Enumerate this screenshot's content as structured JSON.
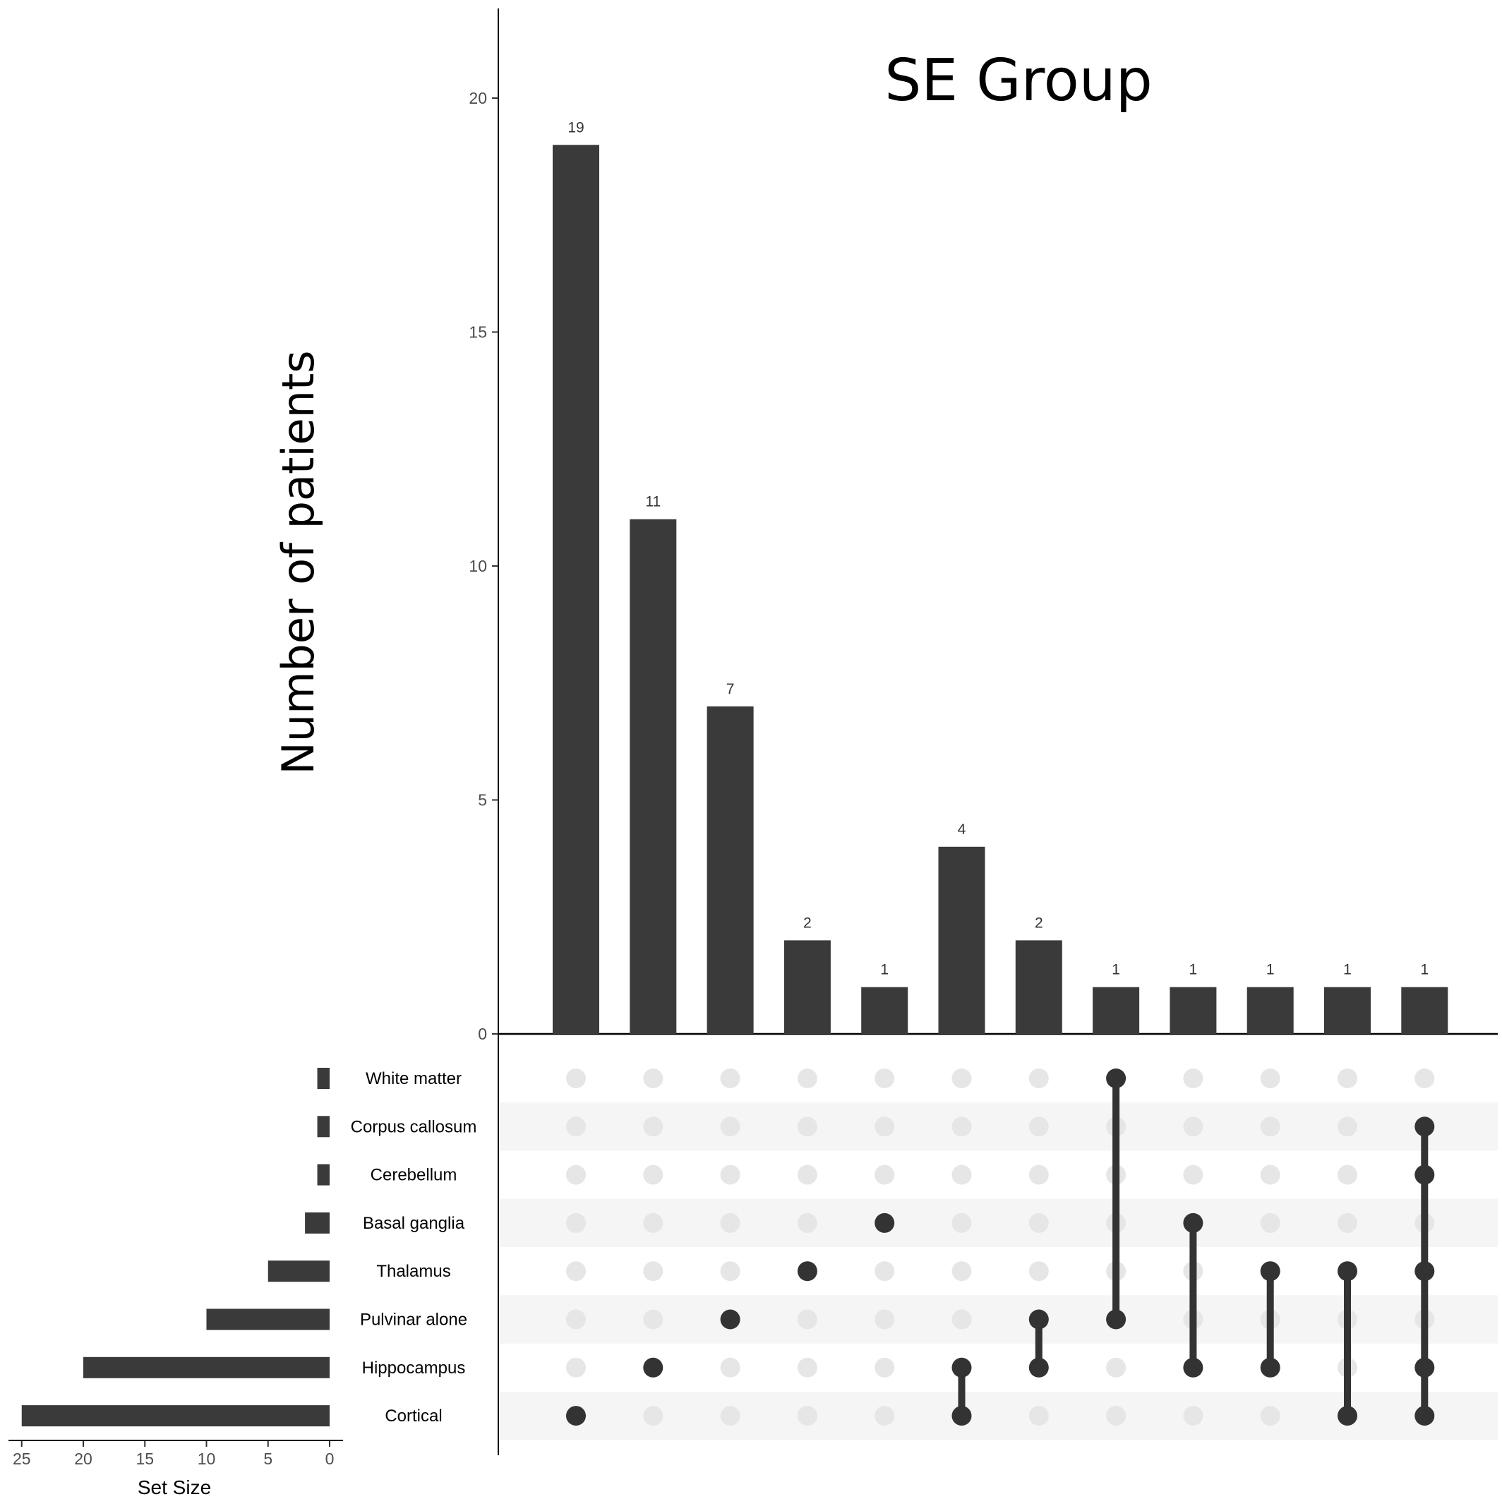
{
  "chart_data": {
    "type": "upset",
    "title": "SE Group",
    "ylabel": "Number of patients",
    "ylim": [
      0,
      22
    ],
    "yticks": [
      0,
      5,
      10,
      15,
      20
    ],
    "sets": [
      "White matter",
      "Corpus callosum",
      "Cerebellum",
      "Basal ganglia",
      "Thalamus",
      "Pulvinar alone",
      "Hippocampus",
      "Cortical"
    ],
    "set_sizes": [
      1,
      1,
      1,
      2,
      5,
      10,
      20,
      25
    ],
    "set_size_label": "Set Size",
    "set_size_xlim": [
      0,
      26
    ],
    "set_size_ticks": [
      25,
      20,
      15,
      10,
      5,
      0
    ],
    "intersections": [
      {
        "sets": [
          "Cortical"
        ],
        "value": 19
      },
      {
        "sets": [
          "Hippocampus"
        ],
        "value": 11
      },
      {
        "sets": [
          "Pulvinar alone"
        ],
        "value": 7
      },
      {
        "sets": [
          "Thalamus"
        ],
        "value": 2
      },
      {
        "sets": [
          "Basal ganglia"
        ],
        "value": 1
      },
      {
        "sets": [
          "Hippocampus",
          "Cortical"
        ],
        "value": 4
      },
      {
        "sets": [
          "Pulvinar alone",
          "Hippocampus"
        ],
        "value": 2
      },
      {
        "sets": [
          "White matter",
          "Pulvinar alone"
        ],
        "value": 1
      },
      {
        "sets": [
          "Basal ganglia",
          "Hippocampus"
        ],
        "value": 1
      },
      {
        "sets": [
          "Thalamus",
          "Hippocampus"
        ],
        "value": 1
      },
      {
        "sets": [
          "Thalamus",
          "Cortical"
        ],
        "value": 1
      },
      {
        "sets": [
          "Corpus callosum",
          "Cerebellum",
          "Thalamus",
          "Hippocampus",
          "Cortical"
        ],
        "value": 1
      }
    ],
    "colors": {
      "bar": "#3a3a3a",
      "dot_active": "#333333",
      "dot_inactive": "#e6e6e6",
      "stripe": "#f5f5f5"
    }
  }
}
